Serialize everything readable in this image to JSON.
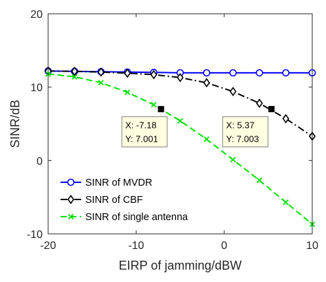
{
  "chart_data": {
    "type": "line",
    "xlabel": "EIRP of jamming/dBW",
    "ylabel": "SINR/dB",
    "xlim": [
      -20,
      10
    ],
    "ylim": [
      -10,
      20
    ],
    "xticks": [
      -20,
      -10,
      0,
      10
    ],
    "yticks": [
      -10,
      0,
      10,
      20
    ],
    "xtick_labels": [
      "-20",
      "-10",
      "0",
      "10"
    ],
    "ytick_labels": [
      "-10",
      "0",
      "10",
      "20"
    ],
    "grid": false,
    "legend_position": "bottom-left",
    "series": [
      {
        "name": "SINR of MVDR",
        "color": "#0000ff",
        "line_style": "solid",
        "marker": "circle",
        "x": [
          -20,
          -17,
          -14,
          -11,
          -8,
          -5,
          -2,
          1,
          4,
          7,
          10
        ],
        "y": [
          12.2,
          12.15,
          12.1,
          12.05,
          12.0,
          11.95,
          11.95,
          11.95,
          11.95,
          11.95,
          11.95
        ]
      },
      {
        "name": "SINR of CBF",
        "color": "#000000",
        "line_style": "dashdot",
        "marker": "diamond",
        "x": [
          -20,
          -17,
          -14,
          -11,
          -8,
          -5,
          -2,
          1,
          4,
          7,
          10
        ],
        "y": [
          12.2,
          12.15,
          12.05,
          11.9,
          11.7,
          11.3,
          10.6,
          9.4,
          7.8,
          5.7,
          3.3
        ]
      },
      {
        "name": "SINR of single antenna",
        "color": "#00e000",
        "line_style": "dashed",
        "marker": "x",
        "x": [
          -20,
          -17,
          -14,
          -11,
          -8,
          -5,
          -2,
          1,
          4,
          7,
          10
        ],
        "y": [
          11.8,
          11.4,
          10.6,
          9.3,
          7.6,
          5.4,
          2.9,
          0.1,
          -2.7,
          -5.7,
          -8.7
        ]
      }
    ],
    "datatips": [
      {
        "x": -7.18,
        "y": 7.001,
        "label_x": "X: -7.18",
        "label_y": "Y: 7.001"
      },
      {
        "x": 5.37,
        "y": 7.003,
        "label_x": "X: 5.37",
        "label_y": "Y: 7.003"
      }
    ]
  }
}
